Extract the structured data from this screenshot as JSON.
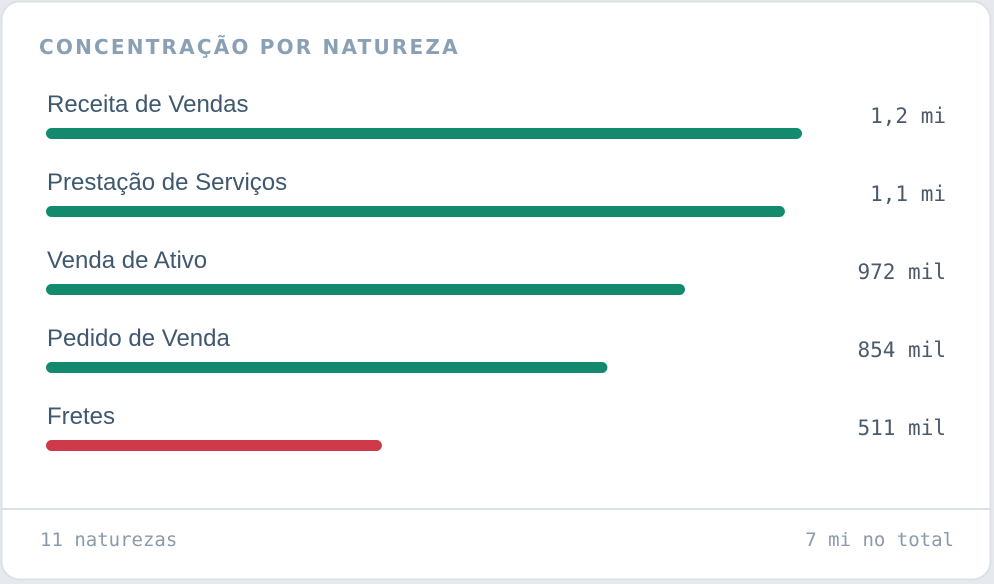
{
  "chart_data": {
    "type": "bar",
    "orientation": "horizontal",
    "title": "CONCENTRAÇÃO POR NATUREZA",
    "categories": [
      "Receita de Vendas",
      "Prestação de Serviços",
      "Venda de Ativo",
      "Pedido de Venda",
      "Fretes"
    ],
    "values": [
      1150000,
      1124000,
      972000,
      854000,
      511000
    ],
    "value_labels": [
      "1,2 mi",
      "1,1 mi",
      "972 mil",
      "854 mil",
      "511 mil"
    ],
    "colors": [
      "#138a6e",
      "#138a6e",
      "#138a6e",
      "#138a6e",
      "#cf3a4b"
    ],
    "footer": [
      "11 naturezas",
      "7 mi no total"
    ]
  }
}
